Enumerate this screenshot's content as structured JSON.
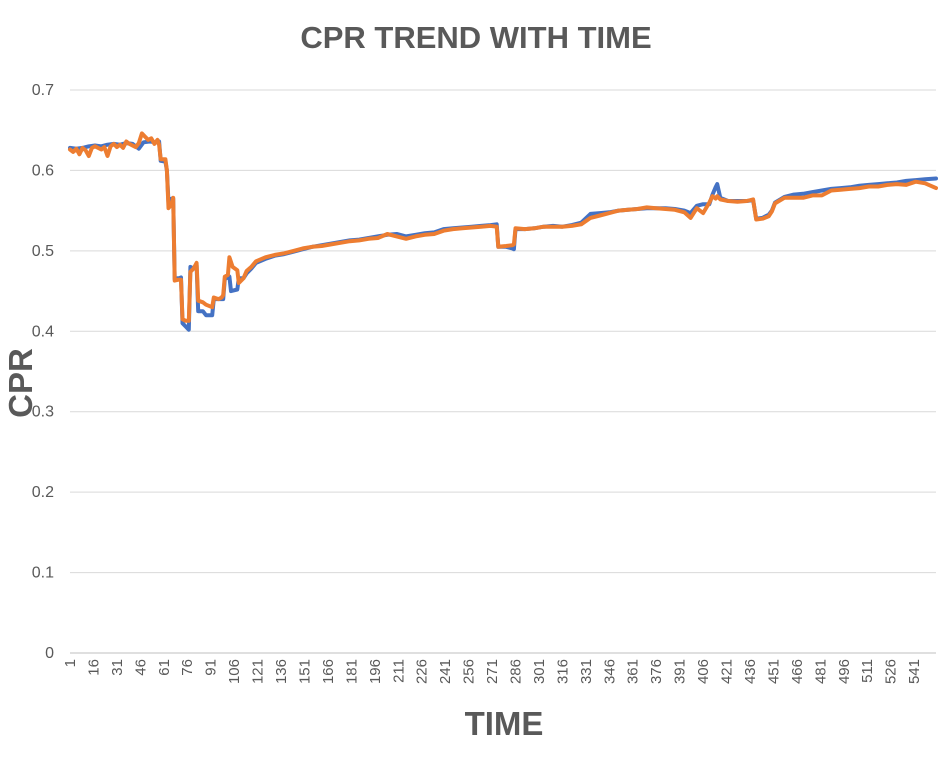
{
  "chart_data": {
    "type": "line",
    "title": "CPR TREND WITH TIME",
    "xlabel": "TIME",
    "ylabel": "CPR",
    "ylim": [
      0,
      0.7
    ],
    "yticks": [
      "0",
      "0.1",
      "0.2",
      "0.3",
      "0.4",
      "0.5",
      "0.6",
      "0.7"
    ],
    "xlim": [
      1,
      555
    ],
    "xticks": [
      "1",
      "16",
      "31",
      "46",
      "61",
      "76",
      "91",
      "106",
      "121",
      "136",
      "151",
      "166",
      "181",
      "196",
      "211",
      "226",
      "241",
      "256",
      "271",
      "286",
      "301",
      "316",
      "331",
      "346",
      "361",
      "376",
      "391",
      "406",
      "421",
      "436",
      "451",
      "466",
      "481",
      "496",
      "511",
      "526",
      "541"
    ],
    "grid": true,
    "legend": "none",
    "series": [
      {
        "color": "#4472C4",
        "points": [
          [
            1,
            0.628
          ],
          [
            5,
            0.627
          ],
          [
            9,
            0.628
          ],
          [
            13,
            0.63
          ],
          [
            17,
            0.631
          ],
          [
            21,
            0.63
          ],
          [
            25,
            0.632
          ],
          [
            29,
            0.633
          ],
          [
            33,
            0.632
          ],
          [
            37,
            0.634
          ],
          [
            41,
            0.633
          ],
          [
            45,
            0.627
          ],
          [
            48,
            0.635
          ],
          [
            52,
            0.636
          ],
          [
            56,
            0.635
          ],
          [
            58,
            0.636
          ],
          [
            59,
            0.612
          ],
          [
            62,
            0.611
          ],
          [
            63,
            0.6
          ],
          [
            64,
            0.56
          ],
          [
            66,
            0.565
          ],
          [
            67,
            0.565
          ],
          [
            68,
            0.465
          ],
          [
            70,
            0.466
          ],
          [
            71,
            0.466
          ],
          [
            72,
            0.467
          ],
          [
            73,
            0.41
          ],
          [
            75,
            0.406
          ],
          [
            77,
            0.402
          ],
          [
            78,
            0.48
          ],
          [
            80,
            0.478
          ],
          [
            82,
            0.482
          ],
          [
            83,
            0.425
          ],
          [
            86,
            0.425
          ],
          [
            88,
            0.42
          ],
          [
            92,
            0.42
          ],
          [
            93,
            0.44
          ],
          [
            96,
            0.44
          ],
          [
            98,
            0.44
          ],
          [
            99,
            0.44
          ],
          [
            100,
            0.465
          ],
          [
            103,
            0.468
          ],
          [
            104,
            0.45
          ],
          [
            108,
            0.452
          ],
          [
            109,
            0.466
          ],
          [
            112,
            0.466
          ],
          [
            114,
            0.472
          ],
          [
            117,
            0.478
          ],
          [
            120,
            0.485
          ],
          [
            126,
            0.49
          ],
          [
            132,
            0.494
          ],
          [
            138,
            0.496
          ],
          [
            144,
            0.499
          ],
          [
            150,
            0.502
          ],
          [
            156,
            0.505
          ],
          [
            162,
            0.507
          ],
          [
            168,
            0.509
          ],
          [
            174,
            0.511
          ],
          [
            180,
            0.513
          ],
          [
            186,
            0.514
          ],
          [
            192,
            0.516
          ],
          [
            198,
            0.518
          ],
          [
            204,
            0.52
          ],
          [
            210,
            0.521
          ],
          [
            216,
            0.518
          ],
          [
            222,
            0.52
          ],
          [
            228,
            0.522
          ],
          [
            234,
            0.523
          ],
          [
            240,
            0.527
          ],
          [
            246,
            0.528
          ],
          [
            252,
            0.529
          ],
          [
            258,
            0.53
          ],
          [
            264,
            0.531
          ],
          [
            270,
            0.532
          ],
          [
            274,
            0.533
          ],
          [
            275,
            0.505
          ],
          [
            280,
            0.505
          ],
          [
            284,
            0.503
          ],
          [
            285,
            0.502
          ],
          [
            286,
            0.527
          ],
          [
            292,
            0.527
          ],
          [
            298,
            0.528
          ],
          [
            304,
            0.53
          ],
          [
            310,
            0.531
          ],
          [
            316,
            0.53
          ],
          [
            322,
            0.532
          ],
          [
            328,
            0.535
          ],
          [
            334,
            0.546
          ],
          [
            340,
            0.547
          ],
          [
            346,
            0.548
          ],
          [
            352,
            0.55
          ],
          [
            358,
            0.551
          ],
          [
            364,
            0.552
          ],
          [
            370,
            0.553
          ],
          [
            376,
            0.553
          ],
          [
            382,
            0.553
          ],
          [
            388,
            0.552
          ],
          [
            394,
            0.55
          ],
          [
            398,
            0.547
          ],
          [
            402,
            0.556
          ],
          [
            406,
            0.558
          ],
          [
            410,
            0.558
          ],
          [
            412,
            0.57
          ],
          [
            414,
            0.579
          ],
          [
            415,
            0.583
          ],
          [
            417,
            0.566
          ],
          [
            422,
            0.562
          ],
          [
            428,
            0.562
          ],
          [
            434,
            0.562
          ],
          [
            438,
            0.563
          ],
          [
            440,
            0.54
          ],
          [
            444,
            0.541
          ],
          [
            448,
            0.545
          ],
          [
            450,
            0.55
          ],
          [
            452,
            0.56
          ],
          [
            458,
            0.567
          ],
          [
            464,
            0.57
          ],
          [
            470,
            0.571
          ],
          [
            476,
            0.573
          ],
          [
            482,
            0.575
          ],
          [
            488,
            0.577
          ],
          [
            494,
            0.578
          ],
          [
            500,
            0.579
          ],
          [
            506,
            0.581
          ],
          [
            512,
            0.582
          ],
          [
            518,
            0.583
          ],
          [
            524,
            0.584
          ],
          [
            530,
            0.585
          ],
          [
            536,
            0.587
          ],
          [
            542,
            0.588
          ],
          [
            548,
            0.589
          ],
          [
            555,
            0.59
          ]
        ]
      },
      {
        "color": "#ED7D31",
        "points": [
          [
            1,
            0.626
          ],
          [
            3,
            0.623
          ],
          [
            5,
            0.627
          ],
          [
            7,
            0.62
          ],
          [
            9,
            0.628
          ],
          [
            11,
            0.625
          ],
          [
            13,
            0.618
          ],
          [
            15,
            0.628
          ],
          [
            17,
            0.63
          ],
          [
            19,
            0.628
          ],
          [
            21,
            0.626
          ],
          [
            23,
            0.629
          ],
          [
            25,
            0.618
          ],
          [
            27,
            0.63
          ],
          [
            29,
            0.633
          ],
          [
            31,
            0.629
          ],
          [
            33,
            0.632
          ],
          [
            35,
            0.628
          ],
          [
            37,
            0.636
          ],
          [
            39,
            0.633
          ],
          [
            41,
            0.631
          ],
          [
            43,
            0.629
          ],
          [
            45,
            0.634
          ],
          [
            47,
            0.646
          ],
          [
            49,
            0.642
          ],
          [
            51,
            0.638
          ],
          [
            53,
            0.64
          ],
          [
            55,
            0.633
          ],
          [
            57,
            0.638
          ],
          [
            58,
            0.632
          ],
          [
            59,
            0.614
          ],
          [
            62,
            0.614
          ],
          [
            63,
            0.6
          ],
          [
            64,
            0.553
          ],
          [
            66,
            0.558
          ],
          [
            67,
            0.566
          ],
          [
            68,
            0.463
          ],
          [
            70,
            0.464
          ],
          [
            72,
            0.464
          ],
          [
            73,
            0.415
          ],
          [
            75,
            0.413
          ],
          [
            77,
            0.413
          ],
          [
            78,
            0.474
          ],
          [
            80,
            0.478
          ],
          [
            82,
            0.485
          ],
          [
            83,
            0.438
          ],
          [
            86,
            0.436
          ],
          [
            88,
            0.433
          ],
          [
            92,
            0.43
          ],
          [
            93,
            0.442
          ],
          [
            96,
            0.44
          ],
          [
            98,
            0.442
          ],
          [
            99,
            0.445
          ],
          [
            100,
            0.468
          ],
          [
            102,
            0.47
          ],
          [
            103,
            0.492
          ],
          [
            105,
            0.48
          ],
          [
            108,
            0.476
          ],
          [
            109,
            0.46
          ],
          [
            112,
            0.466
          ],
          [
            114,
            0.475
          ],
          [
            117,
            0.48
          ],
          [
            120,
            0.487
          ],
          [
            126,
            0.492
          ],
          [
            132,
            0.495
          ],
          [
            138,
            0.497
          ],
          [
            144,
            0.5
          ],
          [
            150,
            0.503
          ],
          [
            156,
            0.505
          ],
          [
            162,
            0.506
          ],
          [
            168,
            0.508
          ],
          [
            174,
            0.51
          ],
          [
            180,
            0.512
          ],
          [
            186,
            0.513
          ],
          [
            192,
            0.515
          ],
          [
            198,
            0.516
          ],
          [
            204,
            0.521
          ],
          [
            210,
            0.518
          ],
          [
            216,
            0.515
          ],
          [
            222,
            0.518
          ],
          [
            228,
            0.52
          ],
          [
            234,
            0.521
          ],
          [
            240,
            0.525
          ],
          [
            246,
            0.527
          ],
          [
            252,
            0.528
          ],
          [
            258,
            0.529
          ],
          [
            264,
            0.53
          ],
          [
            270,
            0.531
          ],
          [
            274,
            0.53
          ],
          [
            275,
            0.505
          ],
          [
            280,
            0.506
          ],
          [
            284,
            0.507
          ],
          [
            285,
            0.508
          ],
          [
            286,
            0.528
          ],
          [
            292,
            0.527
          ],
          [
            298,
            0.528
          ],
          [
            304,
            0.53
          ],
          [
            310,
            0.53
          ],
          [
            316,
            0.53
          ],
          [
            322,
            0.531
          ],
          [
            328,
            0.533
          ],
          [
            334,
            0.541
          ],
          [
            340,
            0.544
          ],
          [
            346,
            0.547
          ],
          [
            352,
            0.55
          ],
          [
            358,
            0.551
          ],
          [
            364,
            0.552
          ],
          [
            370,
            0.554
          ],
          [
            376,
            0.553
          ],
          [
            382,
            0.552
          ],
          [
            388,
            0.551
          ],
          [
            394,
            0.548
          ],
          [
            398,
            0.541
          ],
          [
            402,
            0.553
          ],
          [
            406,
            0.547
          ],
          [
            410,
            0.56
          ],
          [
            412,
            0.568
          ],
          [
            414,
            0.565
          ],
          [
            415,
            0.568
          ],
          [
            417,
            0.564
          ],
          [
            422,
            0.562
          ],
          [
            428,
            0.561
          ],
          [
            434,
            0.562
          ],
          [
            438,
            0.564
          ],
          [
            440,
            0.539
          ],
          [
            444,
            0.54
          ],
          [
            448,
            0.543
          ],
          [
            450,
            0.549
          ],
          [
            452,
            0.559
          ],
          [
            458,
            0.566
          ],
          [
            464,
            0.566
          ],
          [
            470,
            0.566
          ],
          [
            476,
            0.569
          ],
          [
            482,
            0.569
          ],
          [
            488,
            0.575
          ],
          [
            494,
            0.576
          ],
          [
            500,
            0.577
          ],
          [
            506,
            0.578
          ],
          [
            512,
            0.58
          ],
          [
            518,
            0.58
          ],
          [
            524,
            0.582
          ],
          [
            530,
            0.583
          ],
          [
            536,
            0.582
          ],
          [
            542,
            0.586
          ],
          [
            548,
            0.584
          ],
          [
            555,
            0.578
          ]
        ]
      }
    ]
  }
}
